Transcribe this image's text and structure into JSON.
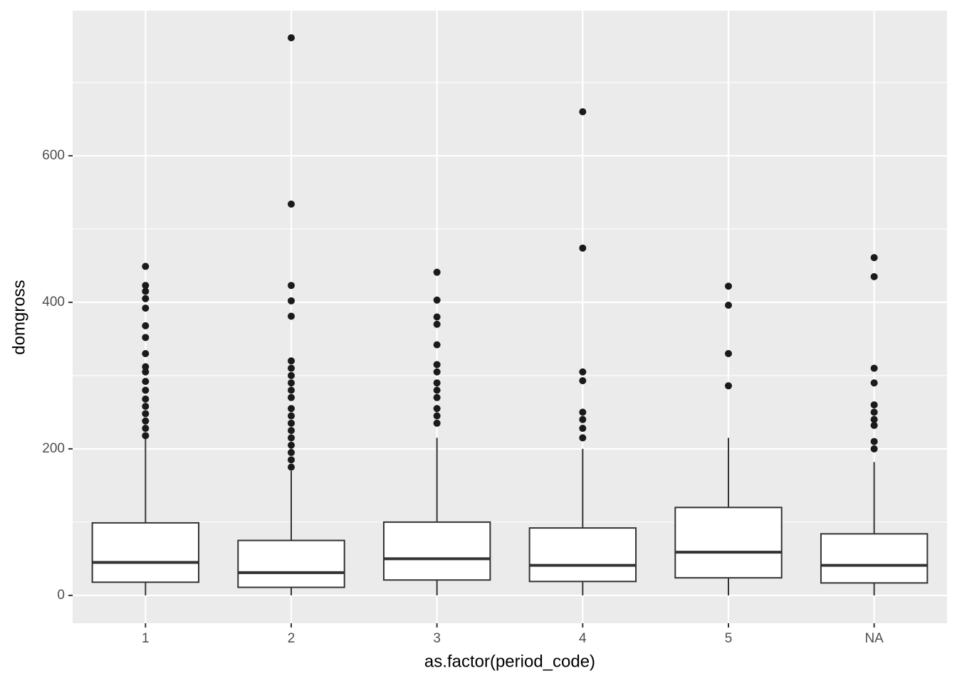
{
  "chart_data": {
    "type": "boxplot",
    "x_label": "as.factor(period_code)",
    "y_label": "domgross",
    "categories": [
      "1",
      "2",
      "3",
      "4",
      "5",
      "NA"
    ],
    "ylim": [
      -38,
      798
    ],
    "yticks": [
      0,
      200,
      400,
      600
    ],
    "y_minor_gridlines": [
      100,
      300,
      500,
      700
    ],
    "grid": true,
    "color": "#1a1a1a",
    "boxes": [
      {
        "whisker_low": 0,
        "q1": 18,
        "median": 45,
        "q3": 99,
        "whisker_high": 215,
        "outliers": [
          449,
          423,
          415,
          405,
          392,
          368,
          352,
          330,
          312,
          305,
          292,
          280,
          268,
          258,
          248,
          238,
          228,
          218
        ]
      },
      {
        "whisker_low": 0,
        "q1": 11,
        "median": 31,
        "q3": 75,
        "whisker_high": 170,
        "outliers": [
          761,
          534,
          423,
          402,
          381,
          320,
          310,
          300,
          290,
          280,
          270,
          255,
          245,
          235,
          225,
          215,
          205,
          195,
          185,
          175
        ]
      },
      {
        "whisker_low": 0,
        "q1": 21,
        "median": 50,
        "q3": 100,
        "whisker_high": 215,
        "outliers": [
          441,
          403,
          380,
          370,
          342,
          315,
          305,
          290,
          280,
          270,
          255,
          245,
          235
        ]
      },
      {
        "whisker_low": 0,
        "q1": 19,
        "median": 41,
        "q3": 92,
        "whisker_high": 200,
        "outliers": [
          660,
          474,
          305,
          293,
          250,
          240,
          228,
          215
        ]
      },
      {
        "whisker_low": 0,
        "q1": 24,
        "median": 59,
        "q3": 120,
        "whisker_high": 215,
        "outliers": [
          422,
          396,
          330,
          286
        ]
      },
      {
        "whisker_low": 0,
        "q1": 17,
        "median": 41,
        "q3": 84,
        "whisker_high": 182,
        "outliers": [
          461,
          435,
          310,
          290,
          260,
          250,
          240,
          232,
          210,
          200
        ]
      }
    ]
  }
}
